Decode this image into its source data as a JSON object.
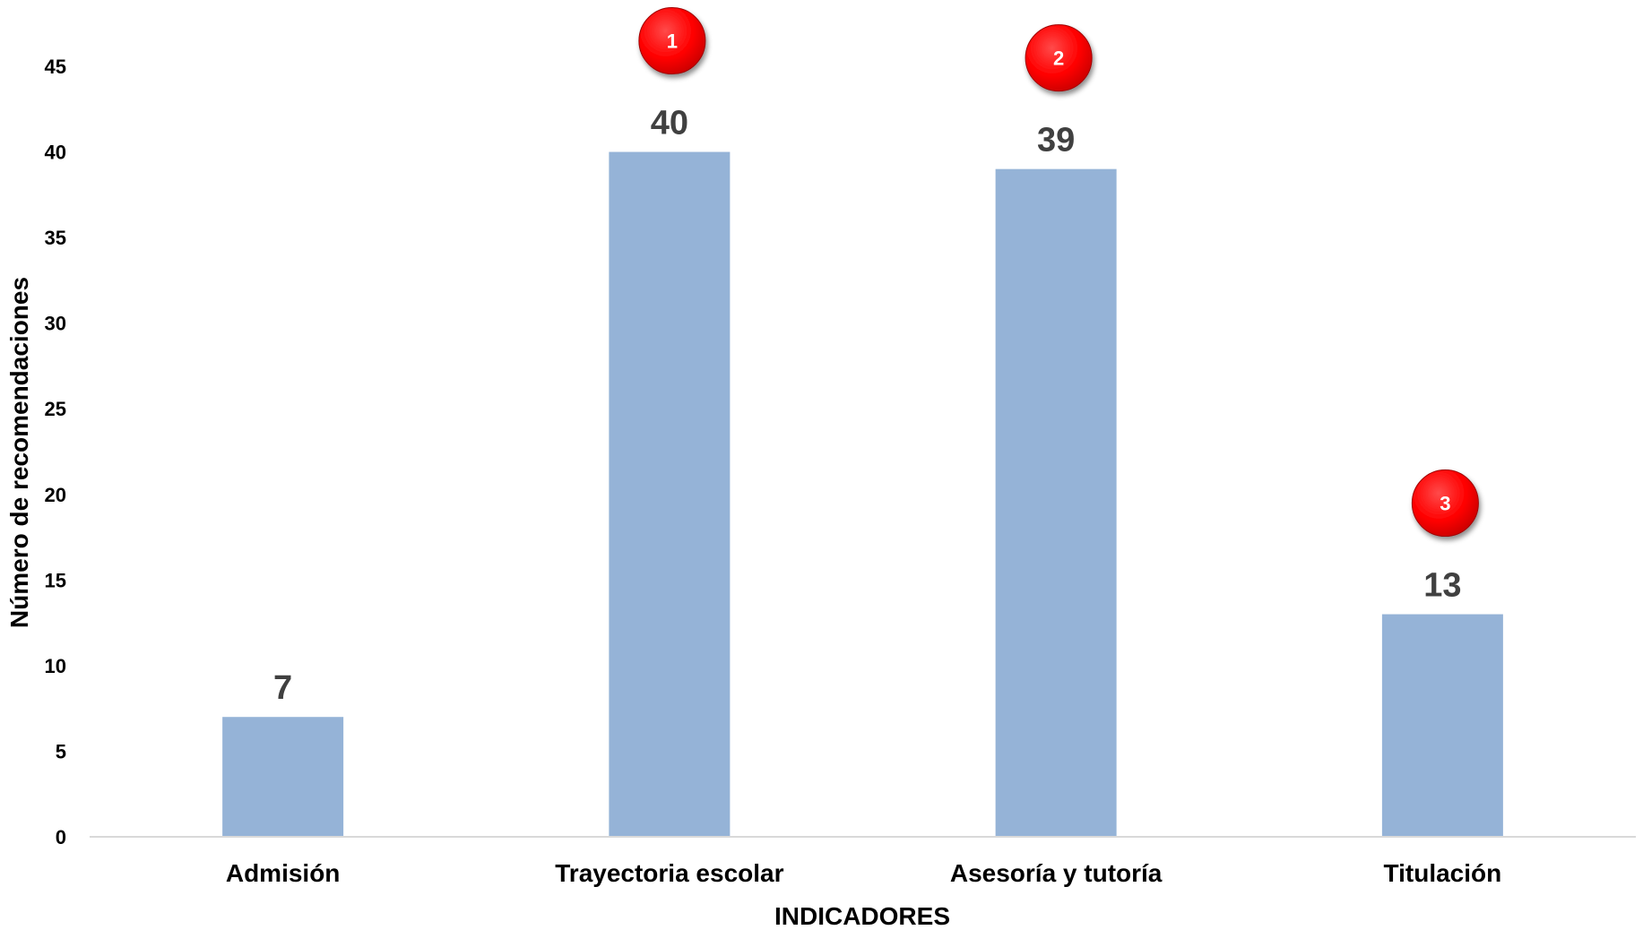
{
  "chart_data": {
    "type": "bar",
    "title": "",
    "xlabel": "INDICADORES",
    "ylabel": "Número de recomendaciones",
    "ylim": [
      0,
      45
    ],
    "yticks": [
      0,
      5,
      10,
      15,
      20,
      25,
      30,
      35,
      40,
      45
    ],
    "categories": [
      "Admisión",
      "Trayectoria escolar",
      "Asesoría y tutoría",
      "Titulación"
    ],
    "values": [
      7,
      40,
      39,
      13
    ],
    "data_labels": [
      "7",
      "40",
      "39",
      "13"
    ],
    "grid": false,
    "bar_color": "#95b3d7",
    "annotations": [
      {
        "category": "Trayectoria escolar",
        "label": "1",
        "color": "#ff0000"
      },
      {
        "category": "Asesoría y tutoría",
        "label": "2",
        "color": "#ff0000"
      },
      {
        "category": "Titulación",
        "label": "3",
        "color": "#ff0000"
      }
    ]
  }
}
